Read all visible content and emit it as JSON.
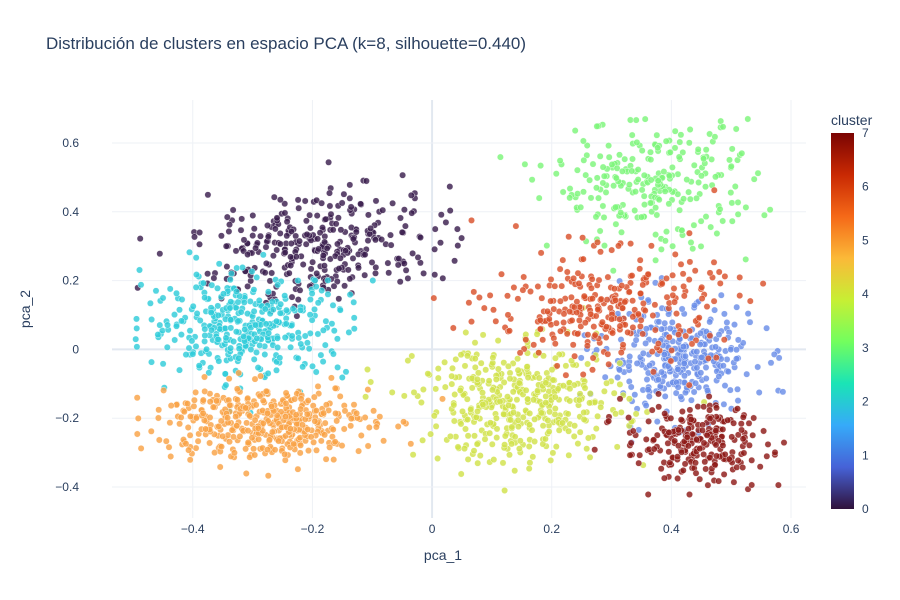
{
  "chart_data": {
    "type": "scatter",
    "title": "Distribución de clusters en espacio PCA (k=8, silhouette=0.440)",
    "xlabel": "pca_1",
    "ylabel": "pca_2",
    "xlim": [
      -0.535,
      0.625
    ],
    "ylim": [
      -0.49,
      0.725
    ],
    "x_ticks": [
      -0.4,
      -0.2,
      0,
      0.2,
      0.4,
      0.6
    ],
    "x_tick_labels": [
      "−0.4",
      "−0.2",
      "0",
      "0.2",
      "0.4",
      "0.6"
    ],
    "y_ticks": [
      -0.4,
      -0.2,
      0,
      0.2,
      0.4,
      0.6
    ],
    "y_tick_labels": [
      "−0.4",
      "−0.2",
      "0",
      "0.2",
      "0.4",
      "0.6"
    ],
    "grid": true,
    "colorbar": {
      "title": "cluster",
      "min": 0,
      "max": 7,
      "tick_labels": [
        "0",
        "1",
        "2",
        "3",
        "4",
        "5",
        "6",
        "7"
      ],
      "colorscale": [
        "#30123b",
        "#4662d7",
        "#36aaf9",
        "#1ae4b6",
        "#72fe5e",
        "#c7ef34",
        "#fbb938",
        "#f56918",
        "#c92903",
        "#7a0403"
      ]
    },
    "clusters": [
      {
        "cluster": 0,
        "color": "#3b1e4e",
        "center": [
          -0.19,
          0.3
        ],
        "spread": [
          0.1,
          0.075
        ],
        "count": 330,
        "rotation": 0.35
      },
      {
        "cluster": 1,
        "color": "#6a8ee8",
        "center": [
          0.41,
          -0.03
        ],
        "spread": [
          0.065,
          0.08
        ],
        "count": 320,
        "rotation": 0.0
      },
      {
        "cluster": 2,
        "color": "#2fccd9",
        "center": [
          -0.31,
          0.07
        ],
        "spread": [
          0.085,
          0.075
        ],
        "count": 380,
        "rotation": 0.0
      },
      {
        "cluster": 3,
        "color": "#7df57a",
        "center": [
          0.37,
          0.48
        ],
        "spread": [
          0.085,
          0.09
        ],
        "count": 260,
        "rotation": 0.0
      },
      {
        "cluster": 4,
        "color": "#d1e24a",
        "center": [
          0.15,
          -0.16
        ],
        "spread": [
          0.085,
          0.085
        ],
        "count": 420,
        "rotation": 0.0
      },
      {
        "cluster": 5,
        "color": "#f9a246",
        "center": [
          -0.28,
          -0.21
        ],
        "spread": [
          0.09,
          0.055
        ],
        "count": 430,
        "rotation": 0.0
      },
      {
        "cluster": 6,
        "color": "#d9502b",
        "center": [
          0.29,
          0.12
        ],
        "spread": [
          0.095,
          0.08
        ],
        "count": 300,
        "rotation": 0.0
      },
      {
        "cluster": 7,
        "color": "#8e1a17",
        "center": [
          0.44,
          -0.27
        ],
        "spread": [
          0.06,
          0.055
        ],
        "count": 240,
        "rotation": 0.0
      }
    ]
  }
}
